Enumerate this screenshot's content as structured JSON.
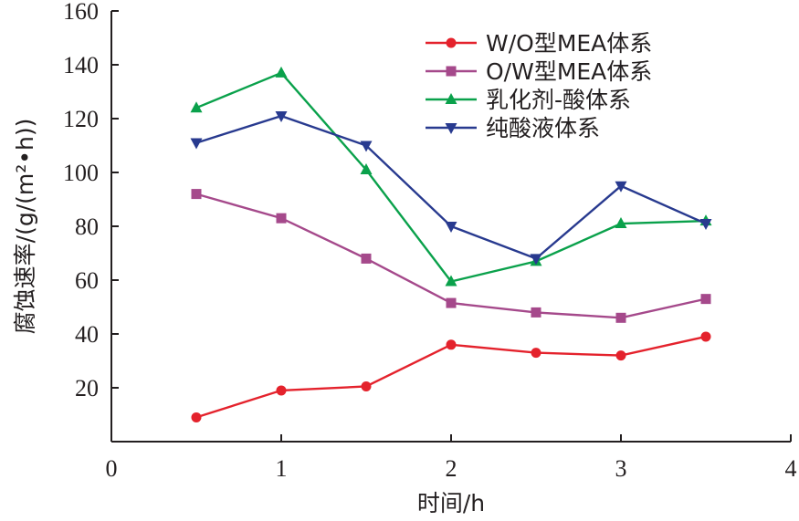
{
  "chart_data": {
    "type": "line",
    "xlabel": "时间/h",
    "ylabel": "腐蚀速率/(g/(m²•h))",
    "xlim": [
      0,
      4
    ],
    "ylim": [
      0,
      160
    ],
    "x_ticks": [
      "0",
      "1",
      "2",
      "3",
      "4"
    ],
    "y_ticks": [
      "20",
      "40",
      "60",
      "80",
      "100",
      "120",
      "140",
      "160"
    ],
    "grid": false,
    "legend_position": "top-right",
    "x": [
      0.5,
      1,
      1.5,
      2,
      2.5,
      3,
      3.5
    ],
    "series": [
      {
        "name": "W/O型MEA体系",
        "color": "#e4222c",
        "marker": "circle",
        "values": [
          9,
          19,
          20.5,
          36,
          33,
          32,
          39
        ]
      },
      {
        "name": "O/W型MEA体系",
        "color": "#a5498b",
        "marker": "square",
        "values": [
          92,
          83,
          68,
          51.5,
          48,
          46,
          53
        ]
      },
      {
        "name": "乳化剂-酸体系",
        "color": "#0aa14b",
        "marker": "triangle-up",
        "values": [
          124,
          137,
          101,
          59.5,
          67,
          81,
          82
        ]
      },
      {
        "name": "纯酸液体系",
        "color": "#283a8f",
        "marker": "triangle-down",
        "values": [
          111,
          121,
          110,
          80,
          68,
          95,
          81
        ]
      }
    ]
  }
}
